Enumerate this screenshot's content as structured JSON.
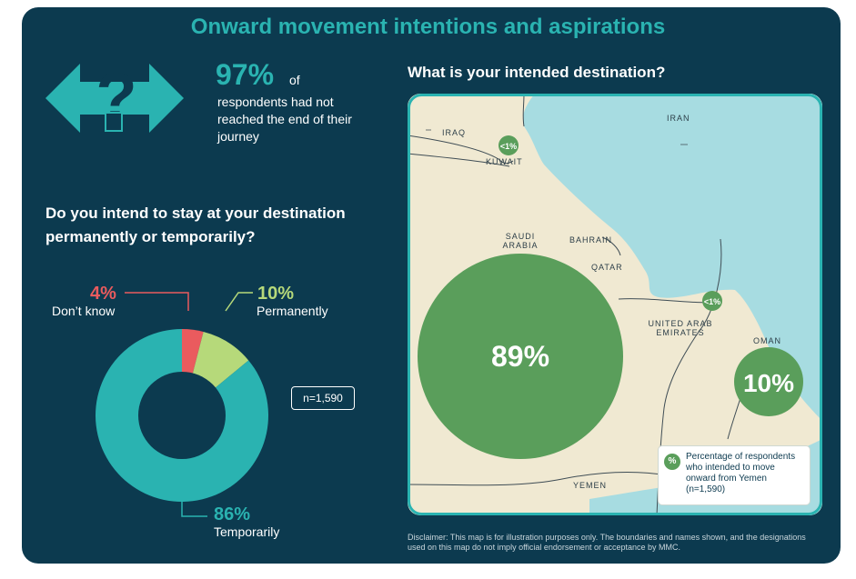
{
  "header": {
    "title": "Onward movement intentions and aspirations"
  },
  "journey_stat": {
    "value": "97%",
    "of": "of",
    "text": "respondents had not reached the end of their journey",
    "icon": "question-arrows-icon"
  },
  "stay_question": "Do you intend to stay at your destination permanently or temporarily?",
  "donut": {
    "segments": [
      {
        "pct_label": "4%",
        "label": "Don’t know",
        "value": 4,
        "color": "#ea5b5e"
      },
      {
        "pct_label": "10%",
        "label": "Permanently",
        "value": 10,
        "color": "#b6d97a"
      },
      {
        "pct_label": "86%",
        "label": "Temporarily",
        "value": 86,
        "color": "#2ab3b1"
      }
    ],
    "n": "n=1,590"
  },
  "destination_question": "What is your intended destination?",
  "map": {
    "country_labels": {
      "iraq": "IRAQ",
      "iran": "IRAN",
      "kuwait": "KUWAIT",
      "saudi_line1": "SAUDI",
      "saudi_line2": "ARABIA",
      "bahrain": "BAHRAIN",
      "qatar": "QATAR",
      "uae_line1": "UNITED ARAB",
      "uae_line2": "EMIRATES",
      "oman": "OMAN",
      "yemen": "YEMEN"
    },
    "bubbles": {
      "saudi": {
        "label": "89%",
        "value": 89
      },
      "oman": {
        "label": "10%",
        "value": 10
      },
      "kuwait": {
        "label": "<1%",
        "value": 0.5
      },
      "uae": {
        "label": "<1%",
        "value": 0.5
      }
    },
    "colors": {
      "land": "#f0e9d2",
      "sea": "#a7dce1",
      "bubble": "#5a9e5b",
      "border": "#2ab3b1"
    }
  },
  "legend": {
    "symbol": "%",
    "text": "Percentage of respondents who intended to move onward from Yemen (n=1,590)"
  },
  "disclaimer": "Disclaimer: This map is for illustration purposes only. The boundaries and names shown, and the designations used on this map do not imply official endorsement or acceptance by MMC."
}
